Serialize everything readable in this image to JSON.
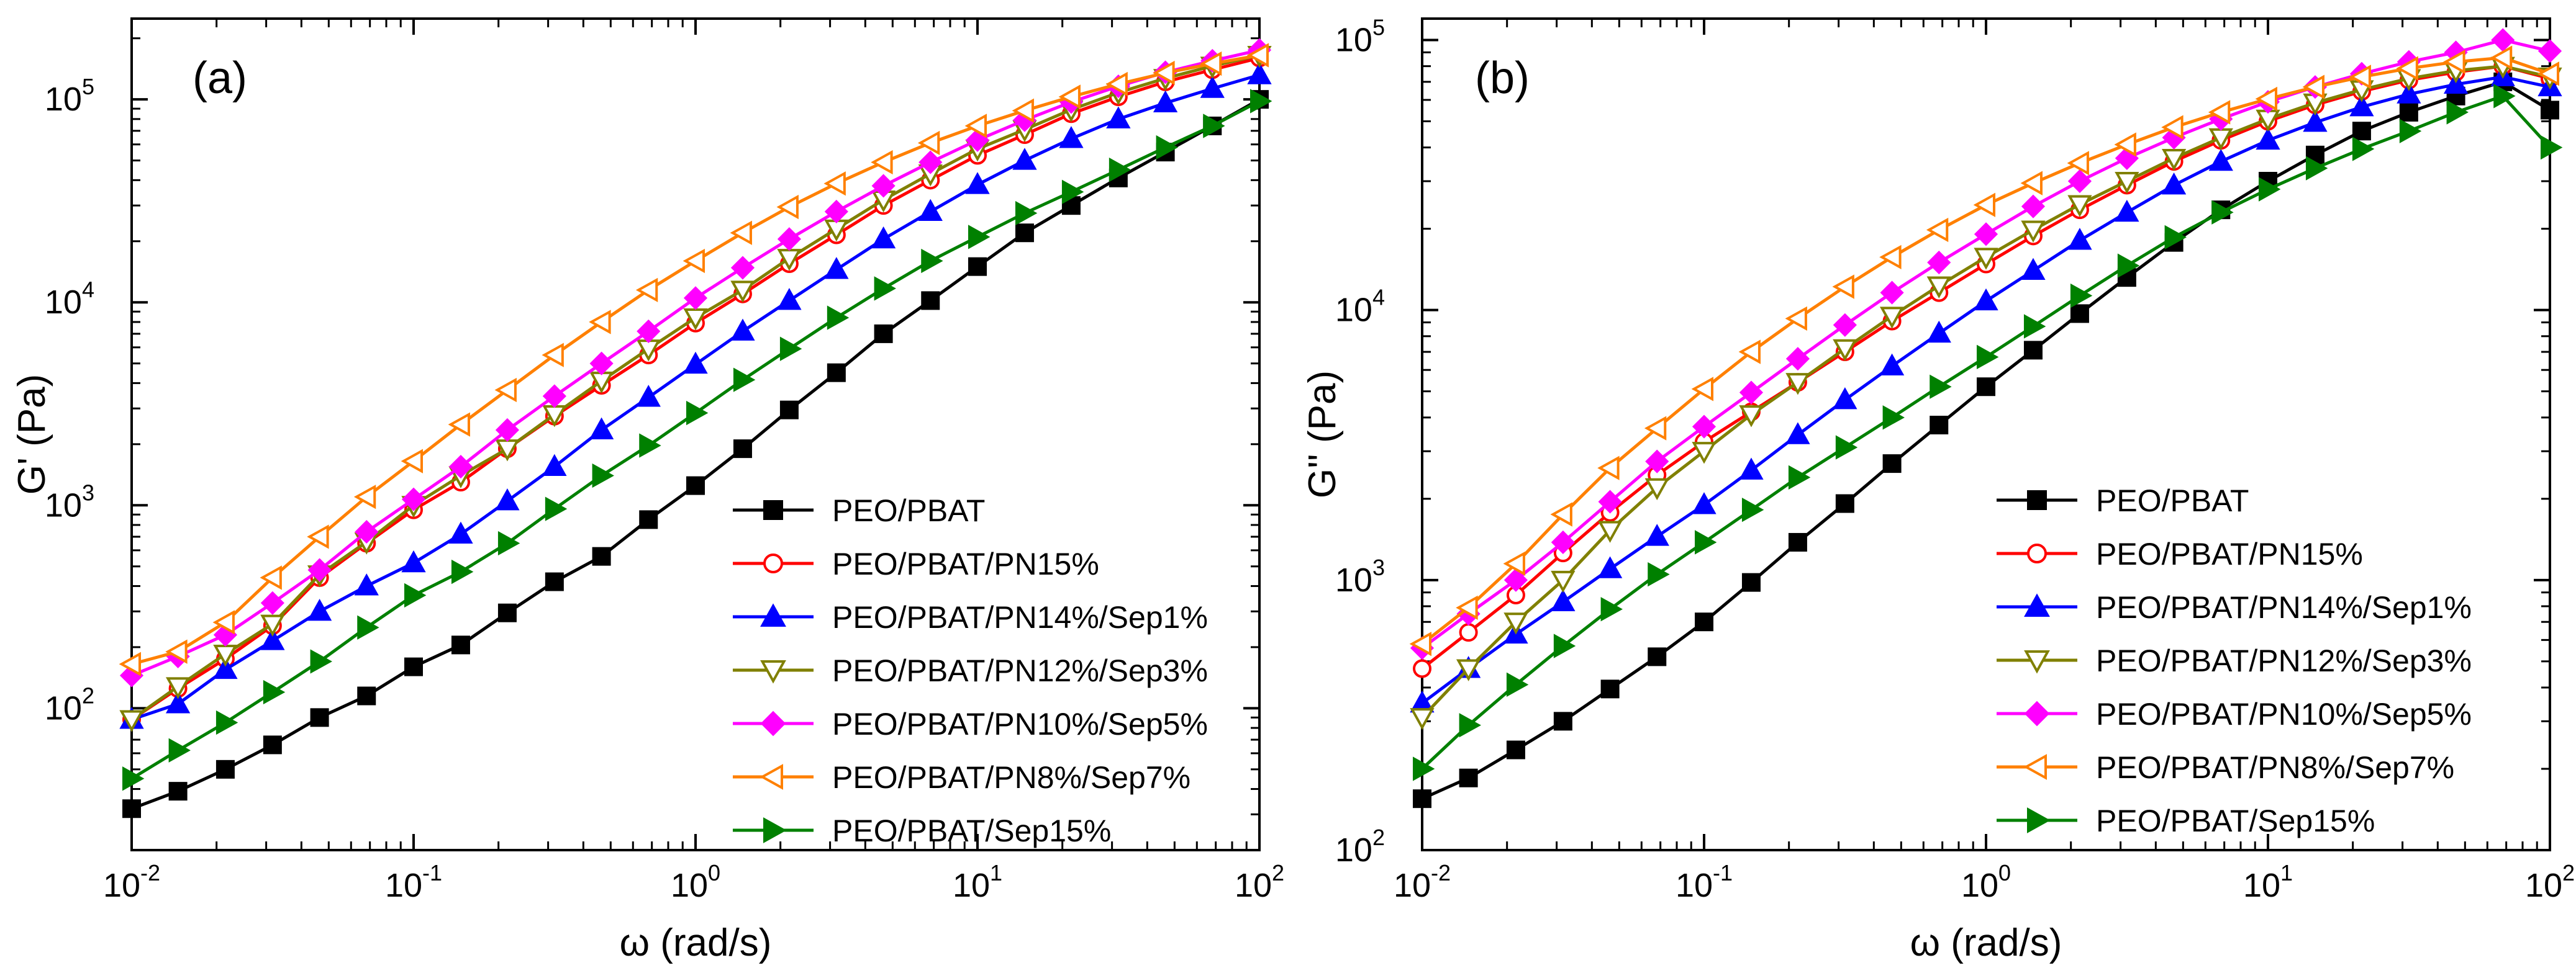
{
  "chart_data": [
    {
      "type": "line",
      "panel_label": "(a)",
      "xlabel": "ω (rad/s)",
      "ylabel": "G' (Pa)",
      "xscale": "log",
      "yscale": "log",
      "xlim": [
        0.01,
        100
      ],
      "ylim": [
        20,
        250000
      ],
      "x_ticks": [
        0.01,
        0.1,
        1,
        10,
        100
      ],
      "x_tick_labels": [
        {
          "base": "10",
          "exp": "-2"
        },
        {
          "base": "10",
          "exp": "-1"
        },
        {
          "base": "10",
          "exp": "0"
        },
        {
          "base": "10",
          "exp": "1"
        },
        {
          "base": "10",
          "exp": "2"
        }
      ],
      "y_ticks": [
        100,
        1000,
        10000,
        100000
      ],
      "y_tick_labels": [
        {
          "base": "10",
          "exp": "2"
        },
        {
          "base": "10",
          "exp": "3"
        },
        {
          "base": "10",
          "exp": "4"
        },
        {
          "base": "10",
          "exp": "5"
        }
      ],
      "grid": false,
      "legend_position": "bottom-right",
      "x": [
        0.01,
        0.0146,
        0.0215,
        0.0316,
        0.0464,
        0.0681,
        0.1,
        0.147,
        0.215,
        0.316,
        0.464,
        0.681,
        1,
        1.47,
        2.15,
        3.16,
        4.64,
        6.81,
        10,
        14.7,
        21.5,
        31.6,
        46.4,
        68.1,
        100
      ],
      "series": [
        {
          "name": "PEO/PBAT",
          "color": "#000000",
          "marker": "square",
          "filled": true,
          "values": [
            32,
            39,
            50,
            66,
            90,
            115,
            160,
            205,
            295,
            420,
            560,
            850,
            1250,
            1900,
            2950,
            4500,
            7000,
            10200,
            15000,
            22000,
            30000,
            41000,
            55000,
            74000,
            100000
          ]
        },
        {
          "name": "PEO/PBAT/PN15%",
          "color": "#ff0000",
          "marker": "circle",
          "filled": false,
          "values": [
            88,
            125,
            175,
            255,
            440,
            650,
            950,
            1300,
            1900,
            2750,
            3900,
            5500,
            7900,
            11000,
            15500,
            21500,
            30000,
            40000,
            53000,
            67000,
            85000,
            103000,
            122000,
            140000,
            160000
          ]
        },
        {
          "name": "PEO/PBAT/PN14%/Sep1%",
          "color": "#0000ff",
          "marker": "triangle-up",
          "filled": true,
          "values": [
            88,
            105,
            155,
            215,
            300,
            400,
            520,
            720,
            1050,
            1550,
            2350,
            3400,
            4950,
            7200,
            10200,
            14500,
            20500,
            28000,
            38000,
            50000,
            64000,
            80000,
            96000,
            113000,
            132000
          ]
        },
        {
          "name": "PEO/PBAT/PN12%/Sep3%",
          "color": "#808000",
          "marker": "triangle-down",
          "filled": false,
          "values": [
            88,
            128,
            185,
            260,
            455,
            660,
            1000,
            1400,
            1900,
            2800,
            4100,
            5900,
            8400,
            11500,
            16500,
            23000,
            32000,
            43000,
            57000,
            71000,
            89000,
            108000,
            127000,
            146000,
            165000
          ]
        },
        {
          "name": "PEO/PBAT/PN10%/Sep5%",
          "color": "#ff00ff",
          "marker": "diamond",
          "filled": true,
          "values": [
            145,
            180,
            230,
            330,
            480,
            740,
            1070,
            1550,
            2350,
            3450,
            5000,
            7200,
            10500,
            14800,
            20500,
            28000,
            37500,
            49000,
            63000,
            79000,
            97000,
            116000,
            136000,
            155000,
            175000
          ]
        },
        {
          "name": "PEO/PBAT/PN8%/Sep7%",
          "color": "#ff8000",
          "marker": "triangle-left",
          "filled": false,
          "values": [
            165,
            190,
            265,
            440,
            700,
            1100,
            1650,
            2500,
            3700,
            5500,
            8000,
            11500,
            16000,
            22000,
            29500,
            38500,
            49000,
            61000,
            74000,
            88000,
            103000,
            119000,
            135000,
            150000,
            165000
          ]
        },
        {
          "name": "PEO/PBAT/Sep15%",
          "color": "#008000",
          "marker": "triangle-right",
          "filled": true,
          "values": [
            45,
            62,
            85,
            120,
            170,
            250,
            360,
            470,
            650,
            960,
            1400,
            1970,
            2850,
            4150,
            5900,
            8400,
            11700,
            16000,
            21000,
            27500,
            35000,
            45000,
            58000,
            74000,
            98000
          ]
        }
      ]
    },
    {
      "type": "line",
      "panel_label": "(b)",
      "xlabel": "ω (rad/s)",
      "ylabel": "G'' (Pa)",
      "xscale": "log",
      "yscale": "log",
      "xlim": [
        0.01,
        100
      ],
      "ylim": [
        100,
        120000
      ],
      "x_ticks": [
        0.01,
        0.1,
        1,
        10,
        100
      ],
      "x_tick_labels": [
        {
          "base": "10",
          "exp": "-2"
        },
        {
          "base": "10",
          "exp": "-1"
        },
        {
          "base": "10",
          "exp": "0"
        },
        {
          "base": "10",
          "exp": "1"
        },
        {
          "base": "10",
          "exp": "2"
        }
      ],
      "y_ticks": [
        100,
        1000,
        10000,
        100000
      ],
      "y_tick_labels": [
        {
          "base": "10",
          "exp": "2"
        },
        {
          "base": "10",
          "exp": "3"
        },
        {
          "base": "10",
          "exp": "4"
        },
        {
          "base": "10",
          "exp": "5"
        }
      ],
      "grid": false,
      "legend_position": "bottom-right",
      "x": [
        0.01,
        0.0146,
        0.0215,
        0.0316,
        0.0464,
        0.0681,
        0.1,
        0.147,
        0.215,
        0.316,
        0.464,
        0.681,
        1,
        1.47,
        2.15,
        3.16,
        4.64,
        6.81,
        10,
        14.7,
        21.5,
        31.6,
        46.4,
        68.1,
        100
      ],
      "series": [
        {
          "name": "PEO/PBAT",
          "color": "#000000",
          "marker": "square",
          "filled": true,
          "values": [
            155,
            185,
            235,
            300,
            395,
            520,
            700,
            980,
            1380,
            1920,
            2700,
            3750,
            5200,
            7100,
            9700,
            13200,
            17800,
            23500,
            30000,
            37500,
            46000,
            54000,
            62000,
            70000,
            55000
          ]
        },
        {
          "name": "PEO/PBAT/PN15%",
          "color": "#ff0000",
          "marker": "circle",
          "filled": false,
          "values": [
            470,
            640,
            880,
            1260,
            1780,
            2450,
            3250,
            4200,
            5400,
            7000,
            9100,
            11600,
            14800,
            18800,
            23500,
            29000,
            35500,
            42500,
            50000,
            57500,
            64500,
            71000,
            76000,
            80000,
            72000
          ]
        },
        {
          "name": "PEO/PBAT/PN14%/Sep1%",
          "color": "#0000ff",
          "marker": "triangle-up",
          "filled": true,
          "values": [
            350,
            470,
            630,
            830,
            1100,
            1450,
            1900,
            2550,
            3450,
            4650,
            6200,
            8200,
            10800,
            14000,
            18100,
            23000,
            29000,
            35500,
            42500,
            49500,
            56500,
            63000,
            68500,
            73000,
            67000
          ]
        },
        {
          "name": "PEO/PBAT/PN12%/Sep3%",
          "color": "#808000",
          "marker": "triangle-down",
          "filled": false,
          "values": [
            310,
            470,
            700,
            1000,
            1530,
            2200,
            3000,
            4100,
            5400,
            7200,
            9500,
            12300,
            15700,
            19800,
            24600,
            30000,
            36500,
            43500,
            51000,
            58500,
            65500,
            72000,
            77000,
            80000,
            73000
          ]
        },
        {
          "name": "PEO/PBAT/PN10%/Sep5%",
          "color": "#ff00ff",
          "marker": "diamond",
          "filled": true,
          "values": [
            560,
            750,
            1000,
            1380,
            1950,
            2750,
            3700,
            4950,
            6600,
            8800,
            11600,
            15000,
            19100,
            24200,
            30000,
            36500,
            43500,
            51000,
            59000,
            67000,
            75000,
            83000,
            90000,
            100000,
            91000
          ]
        },
        {
          "name": "PEO/PBAT/PN8%/Sep7%",
          "color": "#ff8000",
          "marker": "triangle-left",
          "filled": false,
          "values": [
            580,
            790,
            1150,
            1750,
            2600,
            3650,
            5100,
            7000,
            9300,
            12200,
            15700,
            19800,
            24500,
            29500,
            35000,
            41000,
            47500,
            54000,
            60500,
            67000,
            73000,
            78500,
            83000,
            86000,
            75000
          ]
        },
        {
          "name": "PEO/PBAT/Sep15%",
          "color": "#008000",
          "marker": "triangle-right",
          "filled": true,
          "values": [
            200,
            290,
            410,
            570,
            780,
            1050,
            1380,
            1820,
            2400,
            3100,
            4000,
            5200,
            6700,
            8700,
            11300,
            14600,
            18600,
            23000,
            28000,
            33500,
            39500,
            46000,
            54000,
            62000,
            40000
          ]
        }
      ]
    }
  ]
}
